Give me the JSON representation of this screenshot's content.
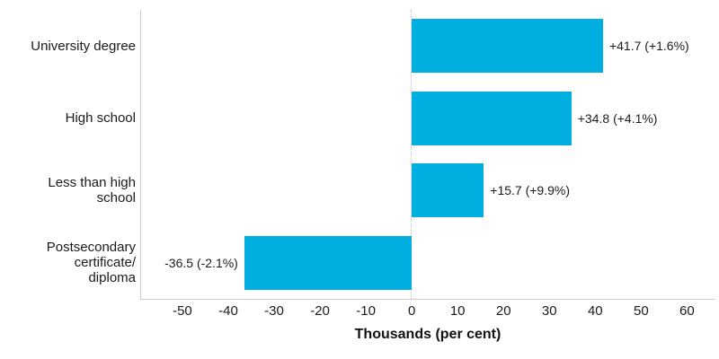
{
  "chart_data": {
    "type": "bar",
    "orientation": "horizontal",
    "categories": [
      "University degree",
      "High school",
      "Less than high\nschool",
      "Postsecondary\ncertificate/\ndiploma"
    ],
    "values": [
      41.7,
      34.8,
      15.7,
      -36.5
    ],
    "value_labels": [
      "+41.7 (+1.6%)",
      "+34.8 (+4.1%)",
      "+15.7 (+9.9%)",
      "-36.5 (-2.1%)"
    ],
    "title": "",
    "xlabel": "Thousands (per cent)",
    "ylabel": "",
    "xticks": [
      -50,
      -40,
      -30,
      -20,
      -10,
      0,
      10,
      20,
      30,
      40,
      50,
      60
    ],
    "xtick_labels": [
      "-50",
      "-40",
      "-30",
      "-20",
      "-10",
      "0",
      "10",
      "20",
      "30",
      "40",
      "50",
      "60"
    ],
    "xlim": [
      -59,
      66
    ],
    "grid": false,
    "legend": false,
    "colors": {
      "bar": "#00AEE0",
      "axis_line": "#cccccc",
      "zero_line": "#bfbfbf",
      "text": "#1a1a1a"
    }
  }
}
